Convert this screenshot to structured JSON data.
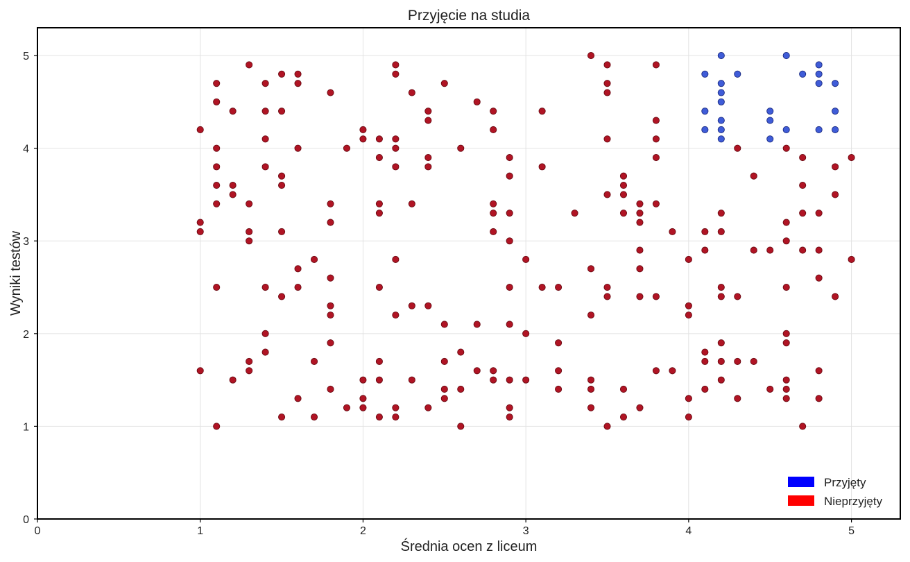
{
  "chart_data": {
    "type": "scatter",
    "title": "Przyjęcie na studia",
    "xlabel": "Średnia ocen z liceum",
    "ylabel": "Wyniki testów",
    "xlim": [
      0,
      5.3
    ],
    "ylim": [
      0,
      5.3
    ],
    "xticks": [
      0,
      1,
      2,
      3,
      4,
      5
    ],
    "yticks": [
      0,
      1,
      2,
      3,
      4,
      5
    ],
    "grid": true,
    "legend_position": "bottom-right",
    "colors": {
      "accepted_fill": "#3f5cd8",
      "accepted_edge": "#1a2a80",
      "rejected_fill": "#b01424",
      "rejected_edge": "#6a0a12",
      "legend_accepted": "#0000ff",
      "legend_rejected": "#ff0000"
    },
    "series": [
      {
        "name": "Przyjęty",
        "points": [
          [
            4.1,
            4.8
          ],
          [
            4.1,
            4.4
          ],
          [
            4.1,
            4.2
          ],
          [
            4.2,
            5.0
          ],
          [
            4.2,
            4.7
          ],
          [
            4.2,
            4.6
          ],
          [
            4.2,
            4.5
          ],
          [
            4.2,
            4.3
          ],
          [
            4.2,
            4.2
          ],
          [
            4.2,
            4.1
          ],
          [
            4.3,
            4.8
          ],
          [
            4.5,
            4.4
          ],
          [
            4.5,
            4.3
          ],
          [
            4.5,
            4.1
          ],
          [
            4.6,
            5.0
          ],
          [
            4.6,
            4.2
          ],
          [
            4.7,
            4.8
          ],
          [
            4.8,
            4.9
          ],
          [
            4.8,
            4.8
          ],
          [
            4.8,
            4.7
          ],
          [
            4.8,
            4.2
          ],
          [
            4.9,
            4.7
          ],
          [
            4.9,
            4.4
          ],
          [
            4.9,
            4.2
          ]
        ]
      },
      {
        "name": "Nieprzyjęty",
        "points": [
          [
            1.0,
            4.2
          ],
          [
            1.0,
            3.2
          ],
          [
            1.0,
            3.1
          ],
          [
            1.0,
            1.6
          ],
          [
            1.1,
            4.7
          ],
          [
            1.1,
            4.5
          ],
          [
            1.1,
            4.0
          ],
          [
            1.1,
            3.8
          ],
          [
            1.1,
            3.6
          ],
          [
            1.1,
            3.4
          ],
          [
            1.1,
            2.5
          ],
          [
            1.1,
            1.0
          ],
          [
            1.2,
            4.4
          ],
          [
            1.2,
            3.6
          ],
          [
            1.2,
            3.5
          ],
          [
            1.2,
            1.5
          ],
          [
            1.3,
            4.9
          ],
          [
            1.3,
            3.4
          ],
          [
            1.3,
            3.1
          ],
          [
            1.3,
            3.0
          ],
          [
            1.3,
            1.7
          ],
          [
            1.3,
            1.6
          ],
          [
            1.4,
            4.7
          ],
          [
            1.4,
            4.4
          ],
          [
            1.4,
            4.1
          ],
          [
            1.4,
            3.8
          ],
          [
            1.4,
            2.5
          ],
          [
            1.4,
            2.0
          ],
          [
            1.4,
            1.8
          ],
          [
            1.5,
            4.8
          ],
          [
            1.5,
            4.4
          ],
          [
            1.5,
            3.7
          ],
          [
            1.5,
            3.6
          ],
          [
            1.5,
            3.1
          ],
          [
            1.5,
            2.4
          ],
          [
            1.5,
            1.1
          ],
          [
            1.6,
            4.8
          ],
          [
            1.6,
            4.7
          ],
          [
            1.6,
            4.0
          ],
          [
            1.6,
            2.7
          ],
          [
            1.6,
            2.5
          ],
          [
            1.6,
            1.3
          ],
          [
            1.7,
            2.8
          ],
          [
            1.7,
            1.7
          ],
          [
            1.7,
            1.1
          ],
          [
            1.8,
            4.6
          ],
          [
            1.8,
            3.4
          ],
          [
            1.8,
            3.2
          ],
          [
            1.8,
            2.6
          ],
          [
            1.8,
            2.3
          ],
          [
            1.8,
            2.2
          ],
          [
            1.8,
            1.9
          ],
          [
            1.8,
            1.4
          ],
          [
            1.9,
            4.0
          ],
          [
            1.9,
            1.2
          ],
          [
            2.0,
            4.2
          ],
          [
            2.0,
            4.1
          ],
          [
            2.0,
            1.5
          ],
          [
            2.0,
            1.3
          ],
          [
            2.0,
            1.2
          ],
          [
            2.1,
            4.1
          ],
          [
            2.1,
            3.9
          ],
          [
            2.1,
            3.4
          ],
          [
            2.1,
            3.3
          ],
          [
            2.1,
            2.5
          ],
          [
            2.1,
            1.7
          ],
          [
            2.1,
            1.5
          ],
          [
            2.1,
            1.1
          ],
          [
            2.2,
            4.9
          ],
          [
            2.2,
            4.8
          ],
          [
            2.2,
            4.1
          ],
          [
            2.2,
            4.0
          ],
          [
            2.2,
            3.8
          ],
          [
            2.2,
            2.8
          ],
          [
            2.2,
            2.2
          ],
          [
            2.2,
            1.2
          ],
          [
            2.2,
            1.1
          ],
          [
            2.3,
            4.6
          ],
          [
            2.3,
            3.4
          ],
          [
            2.3,
            2.3
          ],
          [
            2.3,
            1.5
          ],
          [
            2.4,
            4.4
          ],
          [
            2.4,
            4.3
          ],
          [
            2.4,
            3.9
          ],
          [
            2.4,
            3.8
          ],
          [
            2.4,
            2.3
          ],
          [
            2.4,
            1.2
          ],
          [
            2.5,
            4.7
          ],
          [
            2.5,
            2.1
          ],
          [
            2.5,
            1.7
          ],
          [
            2.5,
            1.4
          ],
          [
            2.5,
            1.3
          ],
          [
            2.6,
            4.0
          ],
          [
            2.6,
            1.8
          ],
          [
            2.6,
            1.4
          ],
          [
            2.6,
            1.0
          ],
          [
            2.7,
            4.5
          ],
          [
            2.7,
            2.1
          ],
          [
            2.7,
            1.6
          ],
          [
            2.8,
            4.4
          ],
          [
            2.8,
            4.2
          ],
          [
            2.8,
            3.4
          ],
          [
            2.8,
            3.3
          ],
          [
            2.8,
            3.1
          ],
          [
            2.8,
            1.6
          ],
          [
            2.8,
            1.5
          ],
          [
            2.9,
            3.9
          ],
          [
            2.9,
            3.7
          ],
          [
            2.9,
            3.3
          ],
          [
            2.9,
            3.0
          ],
          [
            2.9,
            2.5
          ],
          [
            2.9,
            2.1
          ],
          [
            2.9,
            1.5
          ],
          [
            2.9,
            1.2
          ],
          [
            2.9,
            1.1
          ],
          [
            3.0,
            2.8
          ],
          [
            3.0,
            2.0
          ],
          [
            3.0,
            1.5
          ],
          [
            3.1,
            4.4
          ],
          [
            3.1,
            3.8
          ],
          [
            3.1,
            2.5
          ],
          [
            3.2,
            2.5
          ],
          [
            3.2,
            1.9
          ],
          [
            3.2,
            1.6
          ],
          [
            3.2,
            1.4
          ],
          [
            3.3,
            3.3
          ],
          [
            3.4,
            5.0
          ],
          [
            3.4,
            2.7
          ],
          [
            3.4,
            2.2
          ],
          [
            3.4,
            1.5
          ],
          [
            3.4,
            1.4
          ],
          [
            3.4,
            1.2
          ],
          [
            3.5,
            4.9
          ],
          [
            3.5,
            4.7
          ],
          [
            3.5,
            4.6
          ],
          [
            3.5,
            4.1
          ],
          [
            3.5,
            3.5
          ],
          [
            3.5,
            2.5
          ],
          [
            3.5,
            2.4
          ],
          [
            3.5,
            1.0
          ],
          [
            3.6,
            3.7
          ],
          [
            3.6,
            3.6
          ],
          [
            3.6,
            3.5
          ],
          [
            3.6,
            3.3
          ],
          [
            3.6,
            1.4
          ],
          [
            3.6,
            1.1
          ],
          [
            3.7,
            3.4
          ],
          [
            3.7,
            3.3
          ],
          [
            3.7,
            3.2
          ],
          [
            3.7,
            2.9
          ],
          [
            3.7,
            2.7
          ],
          [
            3.7,
            2.4
          ],
          [
            3.7,
            1.2
          ],
          [
            3.8,
            4.9
          ],
          [
            3.8,
            4.3
          ],
          [
            3.8,
            4.1
          ],
          [
            3.8,
            3.9
          ],
          [
            3.8,
            3.4
          ],
          [
            3.8,
            2.4
          ],
          [
            3.8,
            1.6
          ],
          [
            3.9,
            3.1
          ],
          [
            3.9,
            1.6
          ],
          [
            4.0,
            2.8
          ],
          [
            4.0,
            2.3
          ],
          [
            4.0,
            2.2
          ],
          [
            4.0,
            1.3
          ],
          [
            4.0,
            1.1
          ],
          [
            4.1,
            3.1
          ],
          [
            4.1,
            2.9
          ],
          [
            4.1,
            1.8
          ],
          [
            4.1,
            1.7
          ],
          [
            4.1,
            1.4
          ],
          [
            4.2,
            3.3
          ],
          [
            4.2,
            3.1
          ],
          [
            4.2,
            2.5
          ],
          [
            4.2,
            2.4
          ],
          [
            4.2,
            1.9
          ],
          [
            4.2,
            1.7
          ],
          [
            4.2,
            1.5
          ],
          [
            4.3,
            4.0
          ],
          [
            4.3,
            2.4
          ],
          [
            4.3,
            1.7
          ],
          [
            4.3,
            1.3
          ],
          [
            4.4,
            3.7
          ],
          [
            4.4,
            2.9
          ],
          [
            4.4,
            1.7
          ],
          [
            4.5,
            2.9
          ],
          [
            4.5,
            1.4
          ],
          [
            4.6,
            4.0
          ],
          [
            4.6,
            3.2
          ],
          [
            4.6,
            3.0
          ],
          [
            4.6,
            2.5
          ],
          [
            4.6,
            2.0
          ],
          [
            4.6,
            1.9
          ],
          [
            4.6,
            1.5
          ],
          [
            4.6,
            1.4
          ],
          [
            4.6,
            1.3
          ],
          [
            4.7,
            3.9
          ],
          [
            4.7,
            3.6
          ],
          [
            4.7,
            3.3
          ],
          [
            4.7,
            2.9
          ],
          [
            4.7,
            1.0
          ],
          [
            4.8,
            3.3
          ],
          [
            4.8,
            2.9
          ],
          [
            4.8,
            2.6
          ],
          [
            4.8,
            1.6
          ],
          [
            4.8,
            1.3
          ],
          [
            4.9,
            3.8
          ],
          [
            4.9,
            3.5
          ],
          [
            4.9,
            2.4
          ],
          [
            5.0,
            3.9
          ],
          [
            5.0,
            2.8
          ]
        ]
      }
    ]
  }
}
